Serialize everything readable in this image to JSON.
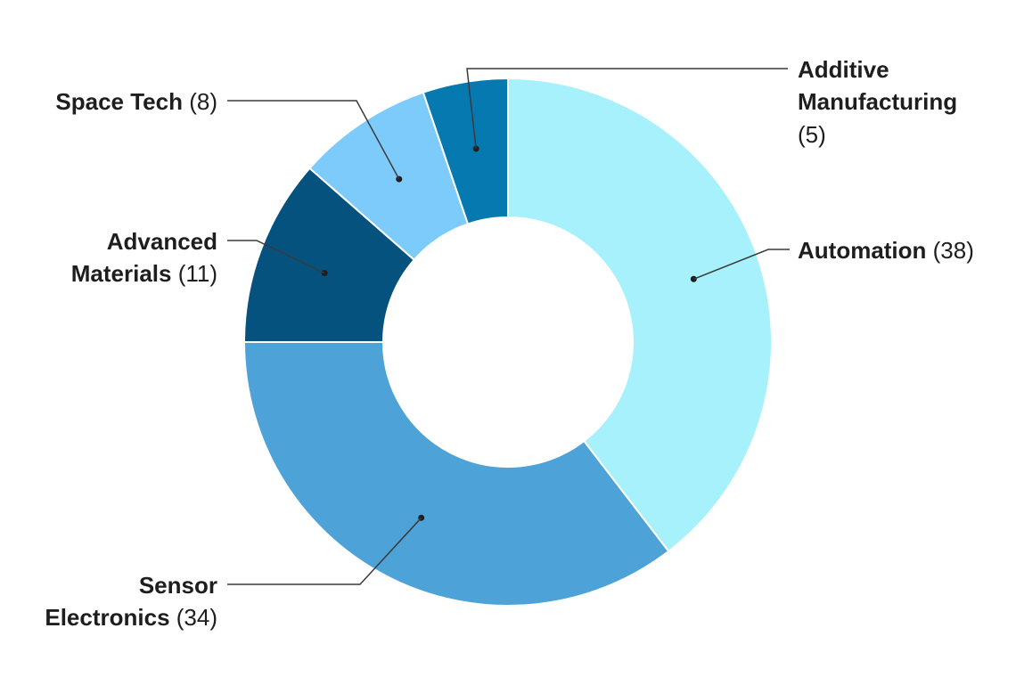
{
  "chart_data": {
    "type": "pie",
    "variant": "donut",
    "title": "",
    "unit": "",
    "total": 96,
    "start": "12 o'clock",
    "direction": "clockwise",
    "legend": "none (callout labels)",
    "slices": [
      {
        "name": "Automation",
        "label_line1": "Automation",
        "label_line2": "",
        "count_text": "(38)",
        "value": 38,
        "color": "#a6f1fc"
      },
      {
        "name": "Sensor Electronics",
        "label_line1": "Sensor",
        "label_line2": "Electronics",
        "count_text": "(34)",
        "value": 34,
        "color": "#4da2d7"
      },
      {
        "name": "Advanced Materials",
        "label_line1": "Advanced",
        "label_line2": "Materials",
        "count_text": "(11)",
        "value": 11,
        "color": "#05527f"
      },
      {
        "name": "Space Tech",
        "label_line1": "Space Tech",
        "label_line2": "",
        "count_text": "(8)",
        "value": 8,
        "color": "#7dcbfb"
      },
      {
        "name": "Additive Manufacturing",
        "label_line1": "Additive",
        "label_line2": "Manufacturing",
        "count_text": "(5)",
        "value": 5,
        "color": "#0779b1"
      }
    ]
  },
  "footer": {
    "left": "",
    "right": ""
  }
}
